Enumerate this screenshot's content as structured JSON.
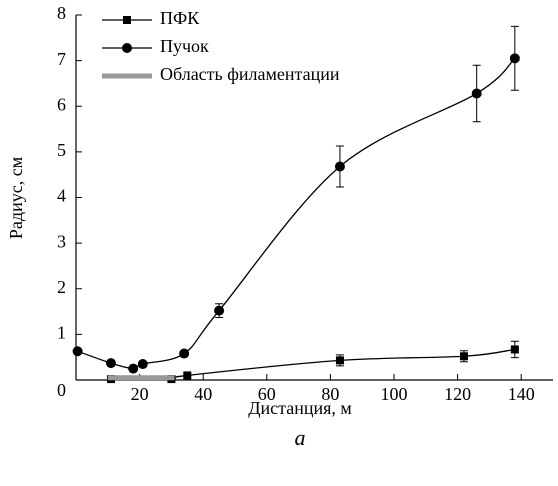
{
  "chart_data": {
    "type": "line",
    "x_label": "Дистанция, м",
    "y_label": "Радиус, см",
    "caption": "а",
    "xlim": [
      0,
      150
    ],
    "xticks": [
      20,
      40,
      60,
      80,
      100,
      120,
      140
    ],
    "ylim": [
      0,
      8
    ],
    "yticks": [
      0,
      1,
      2,
      3,
      4,
      5,
      6,
      7,
      8
    ],
    "legend": "upper left",
    "series": [
      {
        "name": "ПФК",
        "color": "#000000",
        "marker": "square",
        "smooth": true,
        "x": [
          11,
          30,
          35,
          83,
          122,
          138
        ],
        "values": [
          0.02,
          0.02,
          0.1,
          0.43,
          0.52,
          0.67
        ],
        "errors": [
          null,
          null,
          null,
          0.12,
          0.12,
          0.18
        ]
      },
      {
        "name": "Пучок",
        "color": "#000000",
        "marker": "circle",
        "smooth": true,
        "x": [
          0.5,
          11,
          18,
          21,
          34,
          45,
          83,
          126,
          138
        ],
        "values": [
          0.63,
          0.37,
          0.25,
          0.35,
          0.58,
          1.52,
          4.68,
          6.28,
          7.05
        ],
        "errors": [
          null,
          null,
          null,
          null,
          null,
          0.15,
          0.45,
          0.62,
          0.7
        ]
      },
      {
        "name": "Область филаментации",
        "color": "#999999",
        "marker": "none",
        "smooth": false,
        "x": [
          10,
          31
        ],
        "values": [
          0.05,
          0.05
        ],
        "errors": [
          null,
          null
        ]
      }
    ]
  }
}
